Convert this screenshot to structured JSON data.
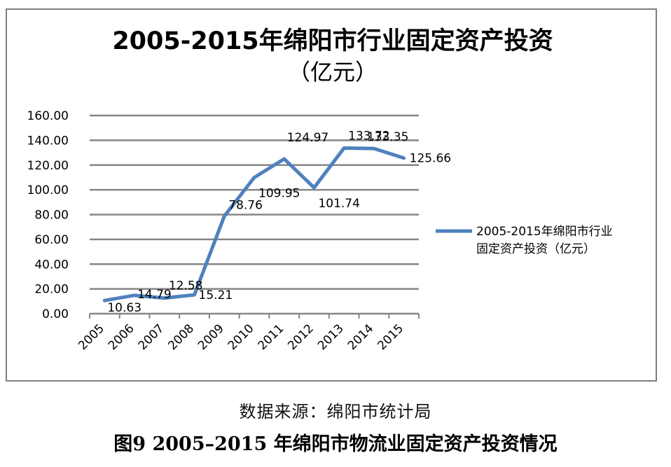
{
  "chart_data": {
    "type": "line",
    "title": "2005-2015年绵阳市行业固定资产投资",
    "subtitle": "（亿元）",
    "categories": [
      "2005",
      "2006",
      "2007",
      "2008",
      "2009",
      "2010",
      "2011",
      "2012",
      "2013",
      "2014",
      "2015"
    ],
    "series": [
      {
        "name": "2005-2015年绵阳市行业固定资产投资（亿元）",
        "legend_lines": [
          "2005-2015年绵阳市行业",
          "固定资产投资（亿元）"
        ],
        "values": [
          10.63,
          14.79,
          12.58,
          15.21,
          78.76,
          109.95,
          124.97,
          101.74,
          133.72,
          133.35,
          125.66
        ],
        "labels": [
          "10.63",
          "14.79",
          "12.58",
          "15.21",
          "78.76",
          "109.95",
          "124.97",
          "101.74",
          "133.72",
          "133.35",
          "125.66"
        ],
        "color": "#4f81bd"
      }
    ],
    "y_ticks": [
      "0.00",
      "20.00",
      "40.00",
      "60.00",
      "80.00",
      "100.00",
      "120.00",
      "140.00",
      "160.00"
    ],
    "ylim": [
      0,
      160
    ],
    "grid": true,
    "legend": "right"
  },
  "source_note": "数据来源：绵阳市统计局",
  "figure_caption": "图9   2005–2015 年绵阳市物流业固定资产投资情况"
}
